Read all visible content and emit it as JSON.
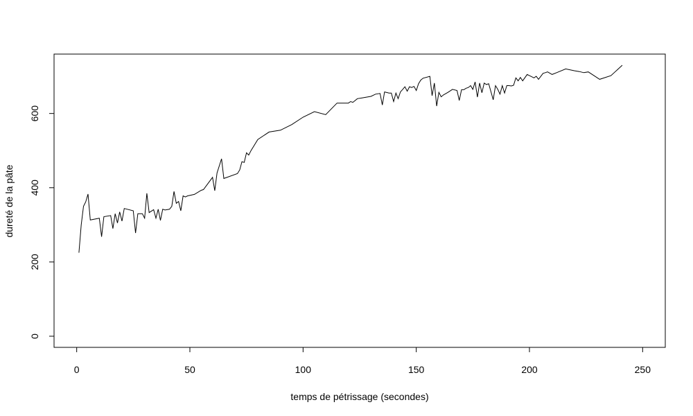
{
  "chart_data": {
    "type": "line",
    "title": "",
    "xlabel": "temps de pétrissage (secondes)",
    "ylabel": "dureté de la pâte",
    "xlim": [
      -10,
      260
    ],
    "ylim": [
      -30,
      760
    ],
    "xticks": [
      0,
      50,
      100,
      150,
      200,
      250
    ],
    "yticks": [
      0,
      200,
      400,
      600
    ],
    "grid": false,
    "line_color": "#000000",
    "series": [
      {
        "x": [
          1,
          2,
          3,
          4,
          5,
          6,
          10,
          11,
          12,
          15,
          16,
          17,
          18,
          19,
          20,
          21,
          25,
          26,
          27,
          29,
          30,
          31,
          32,
          34,
          35,
          36,
          37,
          38,
          39,
          41,
          42,
          43,
          44,
          45,
          46,
          47,
          48,
          49,
          52,
          55,
          56,
          60,
          61,
          62,
          64,
          65,
          71,
          72,
          73,
          74,
          75,
          76,
          77,
          80,
          85,
          90,
          95,
          100,
          105,
          110,
          115,
          120,
          121,
          122,
          124,
          126,
          130,
          132,
          134,
          135,
          136,
          138,
          139,
          140,
          141,
          142,
          143,
          144,
          145,
          146,
          147,
          148,
          149,
          150,
          151,
          152,
          153,
          156,
          157,
          158,
          159,
          160,
          161,
          162,
          164,
          166,
          168,
          169,
          170,
          171,
          172,
          173,
          174,
          175,
          176,
          177,
          178,
          179,
          180,
          181,
          182,
          184,
          185,
          186,
          187,
          188,
          189,
          190,
          191,
          192,
          193,
          194,
          195,
          196,
          197,
          199,
          200,
          201,
          202,
          203,
          204,
          206,
          207,
          208,
          210,
          212,
          216,
          220,
          222,
          224,
          226,
          231,
          236,
          241
        ],
        "y": [
          225,
          300,
          350,
          362,
          383,
          313,
          318,
          268,
          322,
          325,
          290,
          330,
          305,
          335,
          310,
          344,
          338,
          278,
          330,
          330,
          318,
          385,
          333,
          341,
          318,
          342,
          312,
          342,
          340,
          342,
          350,
          390,
          358,
          363,
          338,
          378,
          375,
          378,
          382,
          393,
          395,
          428,
          392,
          440,
          478,
          425,
          438,
          448,
          470,
          468,
          494,
          488,
          500,
          530,
          550,
          555,
          570,
          590,
          605,
          597,
          628,
          628,
          632,
          630,
          640,
          642,
          646,
          652,
          654,
          623,
          658,
          655,
          655,
          632,
          655,
          640,
          658,
          665,
          672,
          660,
          672,
          670,
          673,
          662,
          680,
          690,
          695,
          700,
          648,
          682,
          620,
          657,
          645,
          650,
          657,
          665,
          662,
          635,
          664,
          664,
          668,
          670,
          675,
          665,
          685,
          644,
          682,
          656,
          682,
          678,
          680,
          637,
          675,
          665,
          652,
          675,
          655,
          675,
          675,
          674,
          676,
          696,
          688,
          697,
          688,
          705,
          702,
          699,
          696,
          700,
          692,
          708,
          710,
          712,
          705,
          710,
          720,
          715,
          713,
          710,
          712,
          692,
          702,
          730
        ]
      }
    ]
  }
}
